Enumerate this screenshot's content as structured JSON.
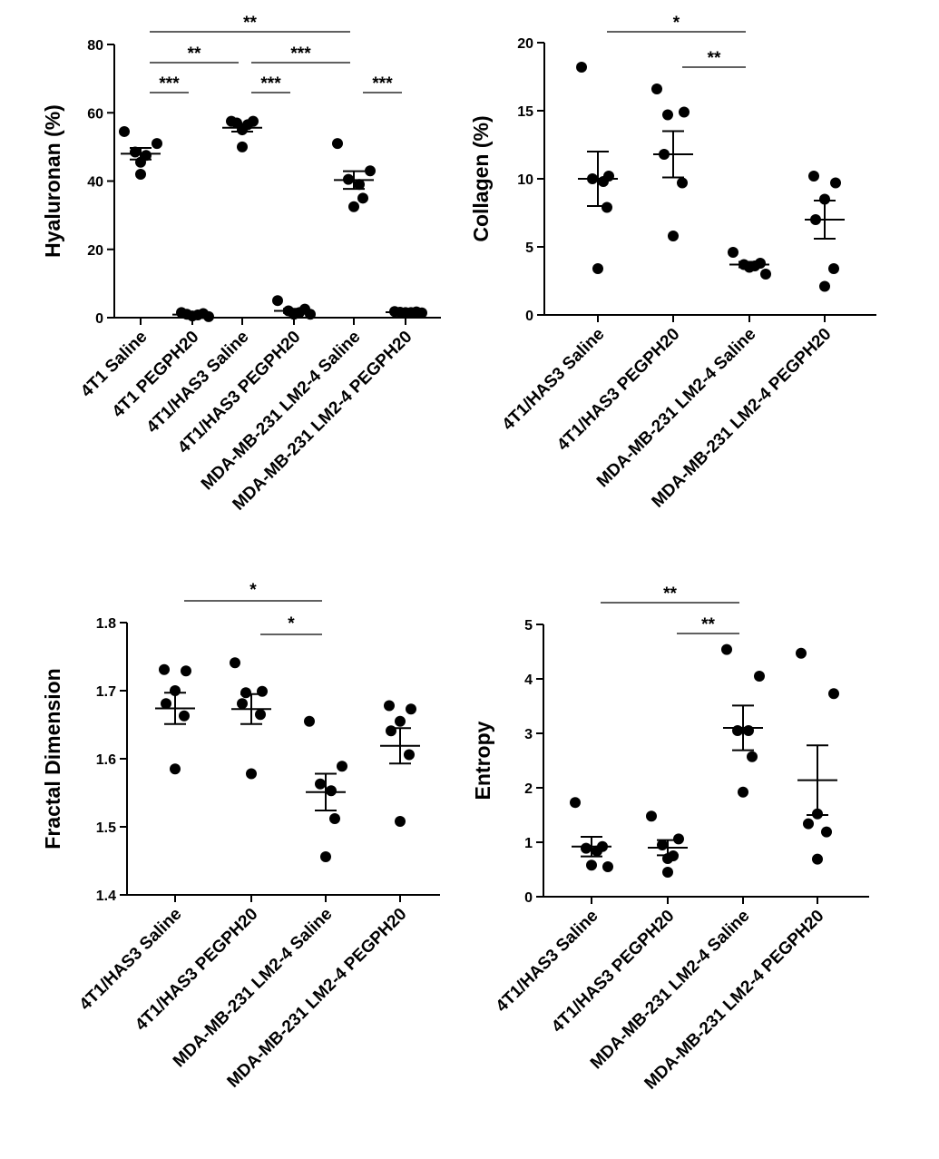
{
  "colors": {
    "ink": "#000000",
    "background": "#ffffff"
  },
  "chart_data": [
    {
      "type": "scatter",
      "style": "dot plot with mean and SEM",
      "ylabel": "Hyaluronan (%)",
      "ylim": [
        0,
        80
      ],
      "yticks": [
        0,
        20,
        40,
        60,
        80
      ],
      "categories": [
        "4T1 Saline",
        "4T1 PEGPH20",
        "4T1/HAS3 Saline",
        "4T1/HAS3 PEGPH20",
        "MDA-MB-231 LM2-4 Saline",
        "MDA-MB-231 LM2-4 PEGPH20"
      ],
      "points": [
        [
          54.5,
          51.0,
          48.5,
          47.5,
          45.5,
          42.0
        ],
        [
          1.5,
          1.2,
          1.0,
          0.8,
          0.5,
          0.3
        ],
        [
          57.5,
          57.5,
          57.0,
          56.5,
          55.0,
          50.0
        ],
        [
          5.0,
          2.5,
          2.0,
          1.5,
          1.0,
          1.0
        ],
        [
          51.0,
          43.0,
          40.5,
          39.0,
          35.0,
          32.5
        ],
        [
          1.8,
          1.7,
          1.6,
          1.5,
          1.5,
          1.4
        ]
      ],
      "mean": [
        48.0,
        0.9,
        55.6,
        2.0,
        40.3,
        1.6
      ],
      "sem": [
        1.7,
        0.2,
        1.1,
        0.6,
        2.6,
        0.1
      ],
      "significance": [
        {
          "from": 0,
          "to": 4,
          "label": "**"
        },
        {
          "from": 0,
          "to": 2,
          "label": "**"
        },
        {
          "from": 2,
          "to": 4,
          "label": "***"
        },
        {
          "from": 0,
          "to": 1,
          "label": "***"
        },
        {
          "from": 2,
          "to": 3,
          "label": "***"
        },
        {
          "from": 4,
          "to": 5,
          "label": "***"
        }
      ]
    },
    {
      "type": "scatter",
      "style": "dot plot with mean and SEM",
      "ylabel": "Collagen (%)",
      "ylim": [
        0,
        20
      ],
      "yticks": [
        0,
        5,
        10,
        15,
        20
      ],
      "categories": [
        "4T1/HAS3 Saline",
        "4T1/HAS3 PEGPH20",
        "MDA-MB-231 LM2-4 Saline",
        "MDA-MB-231 LM2-4 PEGPH20"
      ],
      "points": [
        [
          18.2,
          10.2,
          10.0,
          9.8,
          7.9,
          3.4
        ],
        [
          16.6,
          14.9,
          14.7,
          11.8,
          9.7,
          5.8
        ],
        [
          4.6,
          3.8,
          3.7,
          3.6,
          3.5,
          3.0
        ],
        [
          10.2,
          9.7,
          8.5,
          7.0,
          3.4,
          2.1
        ]
      ],
      "mean": [
        10.0,
        11.8,
        3.7,
        7.0
      ],
      "sem": [
        2.0,
        1.7,
        0.2,
        1.4
      ],
      "significance": [
        {
          "from": 0,
          "to": 2,
          "label": "*"
        },
        {
          "from": 1,
          "to": 2,
          "label": "**"
        }
      ]
    },
    {
      "type": "scatter",
      "style": "dot plot with mean and SEM",
      "ylabel": "Fractal Dimension",
      "ylim": [
        1.4,
        1.8
      ],
      "yticks": [
        1.4,
        1.5,
        1.6,
        1.7,
        1.8
      ],
      "categories": [
        "4T1/HAS3 Saline",
        "4T1/HAS3 PEGPH20",
        "MDA-MB-231 LM2-4 Saline",
        "MDA-MB-231 LM2-4 PEGPH20"
      ],
      "points": [
        [
          1.731,
          1.729,
          1.7,
          1.681,
          1.663,
          1.585
        ],
        [
          1.741,
          1.699,
          1.697,
          1.681,
          1.665,
          1.578
        ],
        [
          1.655,
          1.589,
          1.563,
          1.553,
          1.512,
          1.456
        ],
        [
          1.678,
          1.673,
          1.655,
          1.641,
          1.606,
          1.508
        ]
      ],
      "mean": [
        1.674,
        1.673,
        1.551,
        1.619
      ],
      "sem": [
        0.023,
        0.022,
        0.027,
        0.026
      ],
      "significance": [
        {
          "from": 0,
          "to": 2,
          "label": "*"
        },
        {
          "from": 1,
          "to": 2,
          "label": "*"
        }
      ]
    },
    {
      "type": "scatter",
      "style": "dot plot with mean and SEM",
      "ylabel": "Entropy",
      "ylim": [
        0,
        5
      ],
      "yticks": [
        0,
        1,
        2,
        3,
        4,
        5
      ],
      "categories": [
        "4T1/HAS3 Saline",
        "4T1/HAS3 PEGPH20",
        "MDA-MB-231 LM2-4 Saline",
        "MDA-MB-231 LM2-4 PEGPH20"
      ],
      "points": [
        [
          1.73,
          0.92,
          0.89,
          0.84,
          0.58,
          0.55
        ],
        [
          1.48,
          1.06,
          0.95,
          0.75,
          0.7,
          0.45
        ],
        [
          4.54,
          4.05,
          3.05,
          3.05,
          2.57,
          1.92
        ],
        [
          4.47,
          3.73,
          1.52,
          1.34,
          1.19,
          0.69
        ]
      ],
      "mean": [
        0.92,
        0.9,
        3.1,
        2.14
      ],
      "sem": [
        0.18,
        0.14,
        0.41,
        0.64
      ],
      "significance": [
        {
          "from": 0,
          "to": 2,
          "label": "**"
        },
        {
          "from": 1,
          "to": 2,
          "label": "**"
        }
      ]
    }
  ]
}
